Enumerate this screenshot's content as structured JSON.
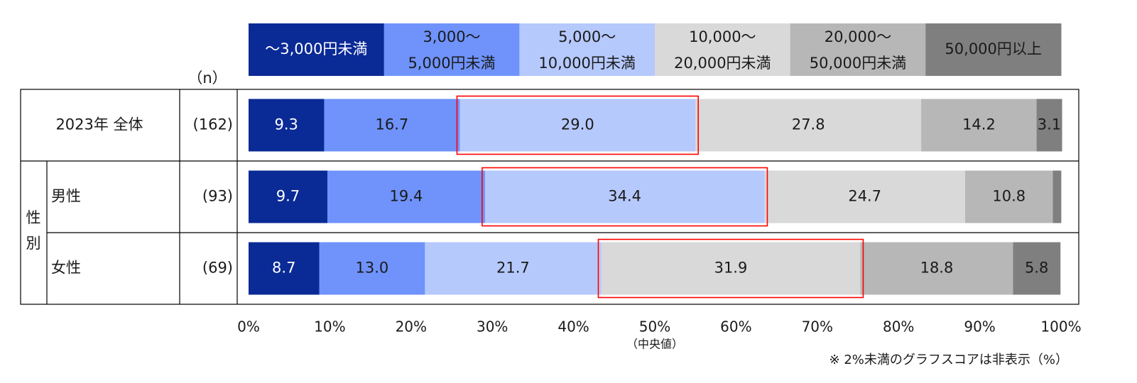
{
  "chart_data": {
    "type": "stacked-bar-100",
    "orientation": "horizontal",
    "n_header": "（n）",
    "legend": [
      {
        "line1": "～3,000円未満",
        "line2": "",
        "color": "#0a2a96",
        "text_color": "#ffffff"
      },
      {
        "line1": "3,000～",
        "line2": "5,000円未満",
        "color": "#6f93fb",
        "text_color": "#1a1a1a"
      },
      {
        "line1": "5,000～",
        "line2": "10,000円未満",
        "color": "#b6c9fd",
        "text_color": "#1a1a1a"
      },
      {
        "line1": "10,000～",
        "line2": "20,000円未満",
        "color": "#d9d9d9",
        "text_color": "#1a1a1a"
      },
      {
        "line1": "20,000～",
        "line2": "50,000円未満",
        "color": "#b7b7b7",
        "text_color": "#1a1a1a"
      },
      {
        "line1": "50,000円以上",
        "line2": "",
        "color": "#7f7f7f",
        "text_color": "#1a1a1a"
      }
    ],
    "group_label": [
      "性",
      "別"
    ],
    "rows": [
      {
        "label": "2023年 全体",
        "n": "(162)",
        "group": false,
        "values": [
          9.3,
          16.7,
          29.0,
          27.8,
          14.2,
          3.1
        ],
        "labels": [
          "9.3",
          "16.7",
          "29.0",
          "27.8",
          "14.2",
          "3.1"
        ],
        "median_segment": 2
      },
      {
        "label": "男性",
        "n": "(93)",
        "group": true,
        "values": [
          9.7,
          19.4,
          34.4,
          24.7,
          10.8,
          1.0
        ],
        "labels": [
          "9.7",
          "19.4",
          "34.4",
          "24.7",
          "10.8",
          ""
        ],
        "median_segment": 2
      },
      {
        "label": "女性",
        "n": "(69)",
        "group": true,
        "values": [
          8.7,
          13.0,
          21.7,
          31.9,
          18.8,
          5.8
        ],
        "labels": [
          "8.7",
          "13.0",
          "21.7",
          "31.9",
          "18.8",
          "5.8"
        ],
        "median_segment": 3
      }
    ],
    "x_ticks": [
      "0%",
      "10%",
      "20%",
      "30%",
      "40%",
      "50%",
      "60%",
      "70%",
      "80%",
      "90%",
      "100%"
    ],
    "x_range": [
      0,
      100
    ],
    "median_tick_note": "（中央値）",
    "highlight_color": "#ff0000",
    "footnote": "※ 2%未満のグラフスコアは非表示（%）"
  }
}
